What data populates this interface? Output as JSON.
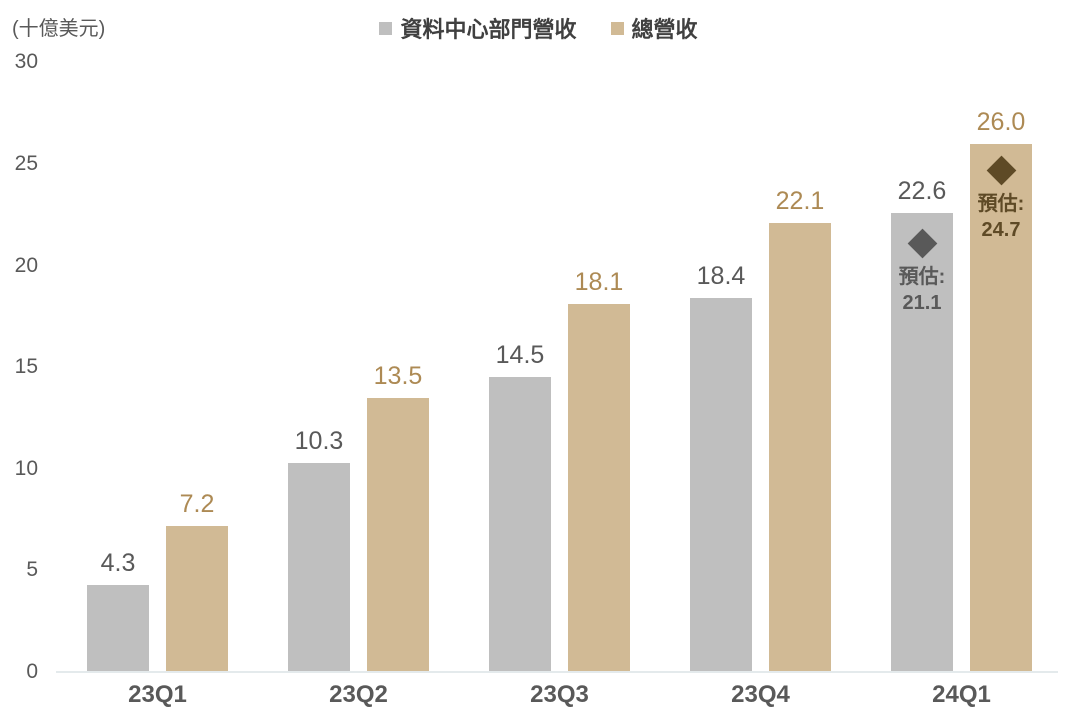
{
  "unit_label": "(十億美元)",
  "legend": [
    {
      "label": "資料中心部門營收",
      "color": "#BFBFBF"
    },
    {
      "label": "總營收",
      "color": "#D1BA95"
    }
  ],
  "chart_data": {
    "type": "bar",
    "title": "",
    "ylabel": "(十億美元)",
    "categories": [
      "23Q1",
      "23Q2",
      "23Q3",
      "23Q4",
      "24Q1"
    ],
    "series": [
      {
        "key": "datacenter-revenue",
        "name": "資料中心部門營收",
        "color": "#BFBFBF",
        "label_color": "#595959",
        "values": [
          4.3,
          10.3,
          14.5,
          18.4,
          22.6
        ]
      },
      {
        "key": "total-revenue",
        "name": "總營收",
        "color": "#D1BA95",
        "label_color": "#AD8A54",
        "values": [
          7.2,
          13.5,
          18.1,
          22.1,
          26.0
        ]
      }
    ],
    "estimates": [
      {
        "category": "24Q1",
        "series_key": "datacenter-revenue",
        "label": "預估:",
        "value": 21.1,
        "marker": "diamond",
        "color": "#595959"
      },
      {
        "category": "24Q1",
        "series_key": "total-revenue",
        "label": "預估:",
        "value": 24.7,
        "marker": "diamond",
        "color": "#5E4A26"
      }
    ],
    "ylim": [
      0,
      30
    ],
    "yticks": [
      0,
      5,
      10,
      15,
      20,
      25,
      30
    ],
    "grid": false,
    "legend_position": "top-center",
    "axis_line_color": "#E4EAEC"
  }
}
